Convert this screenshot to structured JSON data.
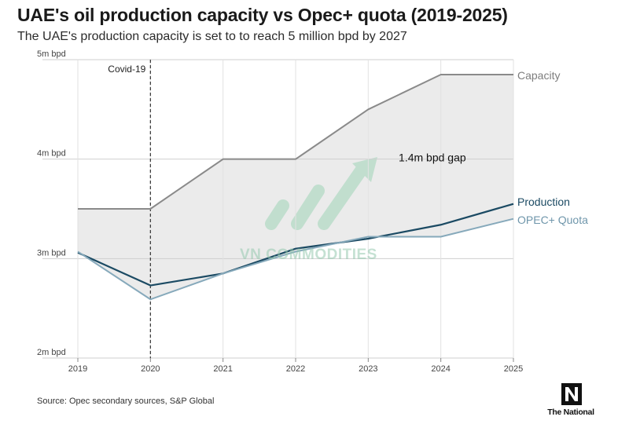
{
  "title": "UAE's oil production capacity vs Opec+ quota (2019-2025)",
  "subtitle": "The UAE's production capacity is set to to reach 5 million bpd by 2027",
  "source": "Source: Opec secondary sources, S&P Global",
  "logo_text": "The National",
  "watermark": "VN COMMODITIES",
  "colors": {
    "capacity": "#8a8a8a",
    "production": "#1b4a63",
    "quota": "#86a9bb",
    "gap_fill": "#ebebeb",
    "grid": "#cfcfcf"
  },
  "chart_data": {
    "type": "line",
    "title": "UAE's oil production capacity vs Opec+ quota (2019-2025)",
    "x": [
      "2019",
      "2020",
      "2021",
      "2022",
      "2023",
      "2024",
      "2025"
    ],
    "xlim": [
      2019,
      2025
    ],
    "ylim": [
      2,
      5
    ],
    "yticks": [
      {
        "value": 2,
        "label": "2m bpd"
      },
      {
        "value": 3,
        "label": "3m bpd"
      },
      {
        "value": 4,
        "label": "4m bpd"
      },
      {
        "value": 5,
        "label": "5m bpd"
      }
    ],
    "grid": true,
    "series": [
      {
        "name": "Capacity",
        "key": "capacity",
        "values": [
          3.5,
          3.5,
          4.0,
          4.0,
          4.5,
          4.85,
          4.85
        ]
      },
      {
        "name": "Production",
        "key": "production",
        "values": [
          3.06,
          2.73,
          2.85,
          3.1,
          3.2,
          3.34,
          3.55
        ]
      },
      {
        "name": "OPEC+ Quota",
        "key": "quota",
        "values": [
          3.07,
          2.59,
          2.85,
          3.07,
          3.22,
          3.22,
          3.4
        ]
      }
    ],
    "shaded_area": {
      "between": [
        "Capacity",
        "OPEC+ Quota"
      ]
    },
    "annotations": [
      {
        "id": "covid",
        "text": "Covid-19",
        "x": 2020,
        "kind": "vertical-dashed-line"
      },
      {
        "id": "gap",
        "text": "1.4m bpd gap",
        "x": 2024,
        "y": 4.0
      }
    ]
  }
}
